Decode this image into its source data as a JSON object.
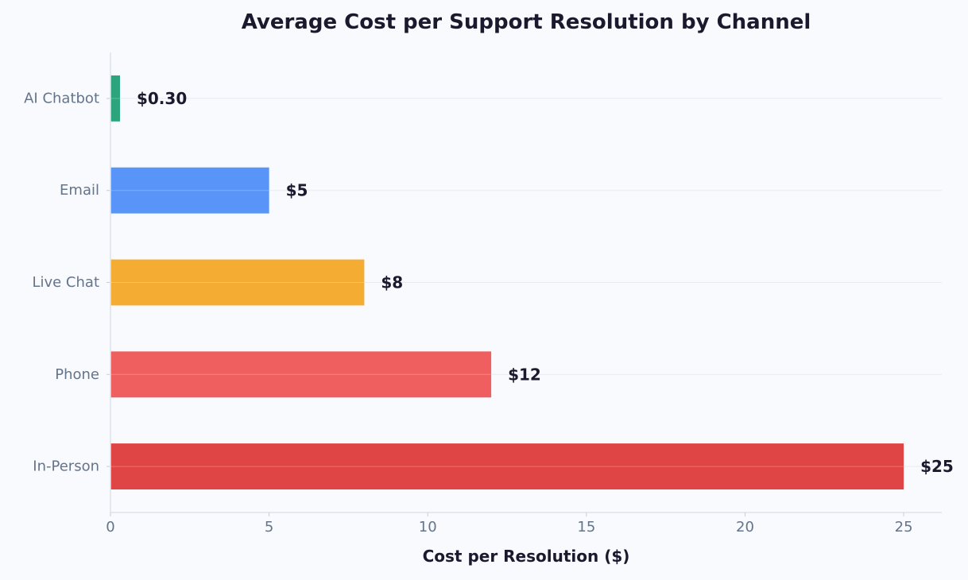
{
  "chart_data": {
    "type": "bar",
    "orientation": "horizontal",
    "title": "Average Cost per Support Resolution by Channel",
    "xlabel": "Cost per Resolution ($)",
    "ylabel": "",
    "xlim": [
      0,
      26.2
    ],
    "xticks": [
      0,
      5,
      10,
      15,
      20,
      25
    ],
    "categories": [
      "AI Chatbot",
      "Email",
      "Live Chat",
      "Phone",
      "In-Person"
    ],
    "values": [
      0.3,
      5,
      8,
      12,
      25
    ],
    "value_labels": [
      "$0.30",
      "$5",
      "$8",
      "$12",
      "$25"
    ],
    "colors": [
      "#2ca57d",
      "#5995f8",
      "#f5ac33",
      "#ef5f5f",
      "#e04545"
    ],
    "grid": "horizontal-light",
    "background": "#f8fafe"
  }
}
